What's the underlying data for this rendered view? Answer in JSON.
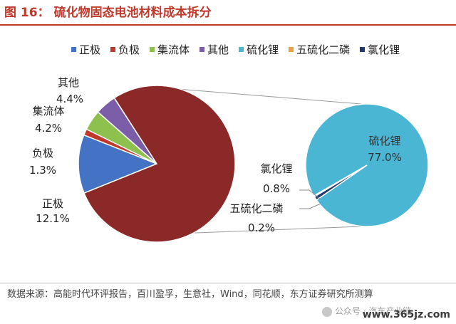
{
  "header": {
    "figure_number": "图 16：",
    "title": "硫化物固态电池材料成本拆分"
  },
  "legend": [
    {
      "label": "正极",
      "color": "#4472c4"
    },
    {
      "label": "负极",
      "color": "#c0392b"
    },
    {
      "label": "集流体",
      "color": "#8dc04d"
    },
    {
      "label": "其他",
      "color": "#7b5ea7"
    },
    {
      "label": "硫化锂",
      "color": "#4bb5d4"
    },
    {
      "label": "五硫化二磷",
      "color": "#f0a040"
    },
    {
      "label": "氯化锂",
      "color": "#1f3a6e"
    }
  ],
  "chart_data": [
    {
      "type": "pie",
      "title": "",
      "slices": [
        {
          "label": "正极",
          "value": 12.1,
          "value_label": "12.1%",
          "color": "#4472c4"
        },
        {
          "label": "负极",
          "value": 1.3,
          "value_label": "1.3%",
          "color": "#c0392b"
        },
        {
          "label": "集流体",
          "value": 4.2,
          "value_label": "4.2%",
          "color": "#8dc04d"
        },
        {
          "label": "其他",
          "value": 4.4,
          "value_label": "4.4%",
          "color": "#7b5ea7"
        },
        {
          "label": "",
          "value": 78.0,
          "value_label": "",
          "color": "#8b2828"
        }
      ]
    },
    {
      "type": "pie",
      "title": "",
      "slices": [
        {
          "label": "硫化锂",
          "value": 77.0,
          "value_label": "77.0%",
          "color": "#4bb5d4"
        },
        {
          "label": "氯化锂",
          "value": 0.8,
          "value_label": "0.8%",
          "color": "#1f3a6e"
        },
        {
          "label": "五硫化二磷",
          "value": 0.2,
          "value_label": "0.2%",
          "color": "#f0a040"
        }
      ]
    }
  ],
  "footer": {
    "source": "数据来源：高能时代环评报告，百川盈孚，生意社，Wind，同花顺，东方证券研究所测算",
    "watermark": "公众号 · 汽车产业链",
    "site": "www.365jz.com"
  }
}
